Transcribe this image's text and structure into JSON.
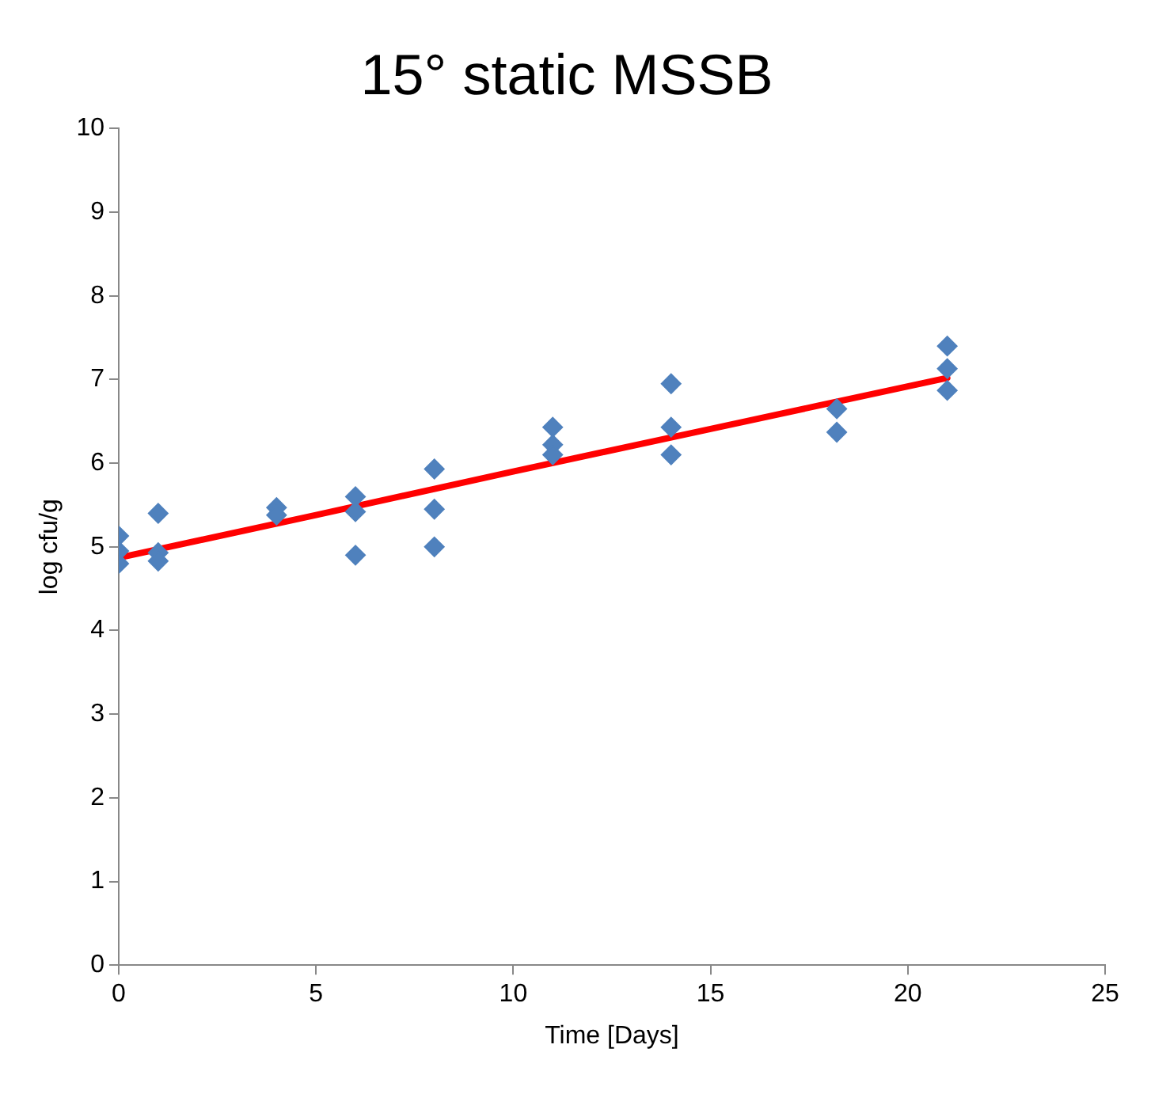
{
  "chart_data": {
    "type": "scatter",
    "title": "15° static MSSB",
    "xlabel": "Time [Days]",
    "ylabel": "log cfu/g",
    "xlim": [
      0,
      25
    ],
    "xticks": [
      0,
      5,
      10,
      15,
      20,
      25
    ],
    "ylim": [
      0,
      10
    ],
    "yticks": [
      0,
      1,
      2,
      3,
      4,
      5,
      6,
      7,
      8,
      9,
      10
    ],
    "grid": false,
    "legend": false,
    "marker": "diamond",
    "series": [
      {
        "color": "#4f81bd",
        "x": [
          0,
          0,
          0,
          1,
          1,
          1,
          4,
          4,
          6,
          6,
          6,
          8,
          8,
          8,
          11,
          11,
          11,
          14,
          14,
          14,
          18.2,
          18.2,
          21,
          21,
          21
        ],
        "values": [
          5.13,
          4.95,
          4.8,
          5.4,
          4.93,
          4.83,
          5.47,
          5.38,
          5.6,
          5.42,
          4.9,
          5.93,
          5.45,
          5.0,
          6.43,
          6.22,
          6.1,
          6.95,
          6.43,
          6.1,
          6.65,
          6.37,
          7.4,
          7.13,
          6.87
        ]
      },
      {
        "type": "line",
        "color": "#ff0000",
        "marker": "none",
        "line_style": "solid",
        "x": [
          0,
          5,
          10,
          15,
          21
        ],
        "values": [
          4.87,
          5.38,
          5.9,
          6.41,
          7.02
        ]
      }
    ]
  }
}
